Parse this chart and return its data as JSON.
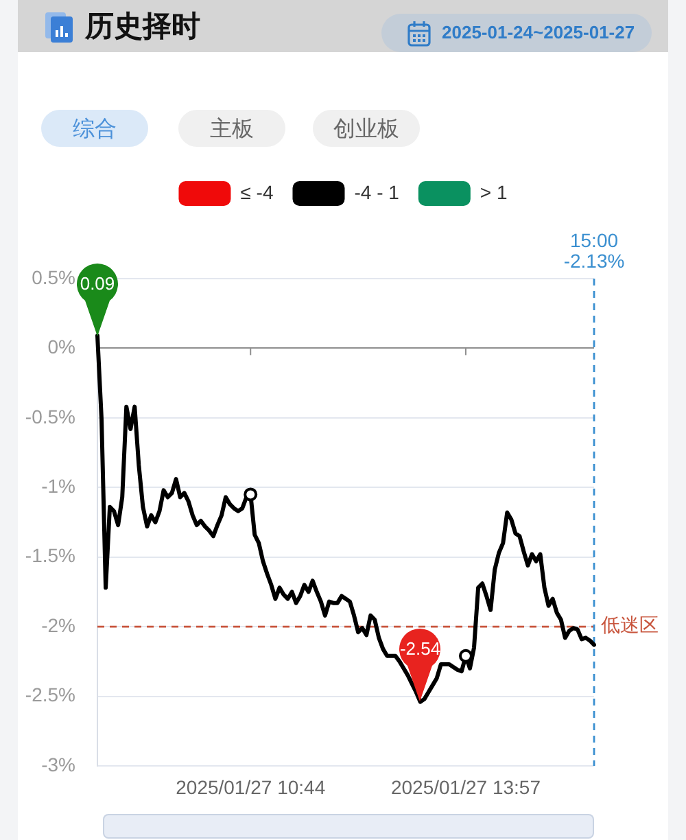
{
  "chart_data": {
    "type": "line",
    "title": "历史择时",
    "subtitle": "2025-01-24~2025-01-27",
    "annotations": [
      "综合",
      "主板",
      "创业板",
      {
        "text": "0.09",
        "y": 0.09
      },
      {
        "text": "-2.54",
        "y": -2.54
      },
      "15:00\n-2.13%"
    ],
    "categories": [
      null,
      null,
      null,
      null,
      null,
      null,
      null,
      null,
      null,
      null,
      null,
      null,
      null,
      null,
      null,
      null,
      null,
      null,
      null,
      null,
      null,
      null,
      null,
      null,
      null,
      null,
      null,
      null,
      null,
      null,
      null,
      null,
      null,
      null,
      null,
      null,
      null,
      "2025/01/27 10:44",
      null,
      null,
      null,
      null,
      null,
      null,
      null,
      null,
      null,
      null,
      null,
      null,
      null,
      null,
      null,
      null,
      null,
      null,
      null,
      null,
      null,
      null,
      null,
      null,
      null,
      null,
      null,
      null,
      null,
      null,
      null,
      null,
      null,
      null,
      null,
      null,
      null,
      null,
      null,
      null,
      null,
      null,
      null,
      null,
      null,
      null,
      null,
      null,
      null,
      null,
      null,
      "2025/01/27 13:57",
      null,
      null,
      null,
      null,
      null,
      null,
      null,
      null,
      null,
      null,
      null,
      null,
      null,
      null,
      null,
      null,
      null,
      null,
      null,
      null,
      null,
      null,
      null,
      null,
      null,
      null,
      null,
      null,
      null,
      null,
      null
    ],
    "series": [
      {
        "name": "≤ -4",
        "color": "#f00a0a",
        "values": [
          null,
          null,
          null,
          null,
          null,
          null,
          null,
          null,
          null,
          null,
          null,
          null,
          null,
          null,
          null,
          null,
          null,
          null,
          null,
          null,
          null,
          null,
          null,
          null,
          null,
          null,
          null,
          null,
          null,
          null,
          null,
          null,
          null,
          null,
          null,
          null,
          null,
          null,
          null,
          null,
          null,
          null,
          null,
          null,
          null,
          null,
          null,
          null,
          null,
          null,
          null,
          null,
          null,
          null,
          null,
          null,
          null,
          null,
          null,
          null,
          null,
          null,
          null,
          null,
          null,
          null,
          null,
          null,
          null,
          null,
          null,
          null,
          null,
          null,
          null,
          null,
          null,
          null,
          null,
          null,
          null,
          null,
          null,
          null,
          null,
          null,
          null,
          null,
          null,
          null,
          null,
          null,
          null,
          null,
          null,
          null,
          null,
          null,
          null,
          null,
          null,
          null,
          null,
          null,
          null,
          null,
          null,
          null,
          null,
          null,
          null,
          null,
          null,
          null,
          null,
          null,
          null,
          null,
          null,
          null,
          null
        ]
      },
      {
        "name": "-4 - 1",
        "color": "#000000",
        "values": [
          0.09,
          -0.51,
          -1.72,
          -1.14,
          -1.17,
          -1.27,
          -1.07,
          -0.42,
          -0.58,
          -0.42,
          -0.84,
          -1.14,
          -1.28,
          -1.2,
          -1.25,
          -1.17,
          -1.02,
          -1.07,
          -1.04,
          -0.94,
          -1.07,
          -1.04,
          -1.1,
          -1.2,
          -1.27,
          -1.24,
          -1.28,
          -1.31,
          -1.35,
          -1.27,
          -1.2,
          -1.07,
          -1.12,
          -1.15,
          -1.17,
          -1.15,
          -1.07,
          -1.05,
          -1.34,
          -1.4,
          -1.53,
          -1.62,
          -1.7,
          -1.8,
          -1.72,
          -1.77,
          -1.8,
          -1.75,
          -1.83,
          -1.78,
          -1.7,
          -1.75,
          -1.67,
          -1.75,
          -1.82,
          -1.92,
          -1.82,
          -1.83,
          -1.83,
          -1.78,
          -1.8,
          -1.82,
          -1.92,
          -2.04,
          -2.01,
          -2.06,
          -1.92,
          -1.95,
          -2.08,
          -2.16,
          -2.21,
          -2.21,
          -2.21,
          -2.25,
          -2.3,
          -2.35,
          -2.41,
          -2.47,
          -2.54,
          -2.52,
          -2.47,
          -2.42,
          -2.37,
          -2.27,
          -2.27,
          -2.27,
          -2.29,
          -2.31,
          -2.32,
          -2.21,
          -2.3,
          -2.15,
          -1.72,
          -1.69,
          -1.78,
          -1.88,
          -1.59,
          -1.47,
          -1.4,
          -1.18,
          -1.23,
          -1.33,
          -1.35,
          -1.46,
          -1.56,
          -1.48,
          -1.53,
          -1.48,
          -1.72,
          -1.85,
          -1.8,
          -1.9,
          -1.95,
          -2.08,
          -2.03,
          -2.01,
          -2.02,
          -2.09,
          -2.08,
          -2.1,
          -2.13
        ]
      },
      {
        "name": "> 1",
        "color": "#0a9160",
        "values": [
          null,
          null,
          null,
          null,
          null,
          null,
          null,
          null,
          null,
          null,
          null,
          null,
          null,
          null,
          null,
          null,
          null,
          null,
          null,
          null,
          null,
          null,
          null,
          null,
          null,
          null,
          null,
          null,
          null,
          null,
          null,
          null,
          null,
          null,
          null,
          null,
          null,
          null,
          null,
          null,
          null,
          null,
          null,
          null,
          null,
          null,
          null,
          null,
          null,
          null,
          null,
          null,
          null,
          null,
          null,
          null,
          null,
          null,
          null,
          null,
          null,
          null,
          null,
          null,
          null,
          null,
          null,
          null,
          null,
          null,
          null,
          null,
          null,
          null,
          null,
          null,
          null,
          null,
          null,
          null,
          null,
          null,
          null,
          null,
          null,
          null,
          null,
          null,
          null,
          null,
          null,
          null,
          null,
          null,
          null,
          null,
          null,
          null,
          null,
          null,
          null,
          null,
          null,
          null,
          null,
          null,
          null,
          null,
          null,
          null,
          null,
          null,
          null,
          null,
          null,
          null,
          null,
          null,
          null,
          null,
          null
        ]
      },
      {
        "type": "scatter",
        "color": "#000000",
        "marker": "circle",
        "x": [
          "2025/01/27 10:44",
          "2025/01/27 13:57"
        ],
        "values": [
          -1.05,
          -2.21
        ]
      }
    ],
    "ylim": [
      -3,
      0.5
    ],
    "yticks": [
      {
        "value": 0.5,
        "label": "0.5%"
      },
      {
        "value": 0,
        "label": "0%"
      },
      {
        "value": -0.5,
        "label": "-0.5%"
      },
      {
        "value": -1,
        "label": "-1%"
      },
      {
        "value": -1.5,
        "label": "-1.5%"
      },
      {
        "value": -2,
        "label": "-2%"
      },
      {
        "value": -2.5,
        "label": "-2.5%"
      },
      {
        "value": -3,
        "label": "-3%"
      }
    ],
    "ref_lines": [
      {
        "axis": "y",
        "value": -2,
        "label": "低迷区",
        "color": "#c8553d",
        "line_style": "dashed"
      }
    ],
    "grid": "y",
    "legend": "top"
  }
}
